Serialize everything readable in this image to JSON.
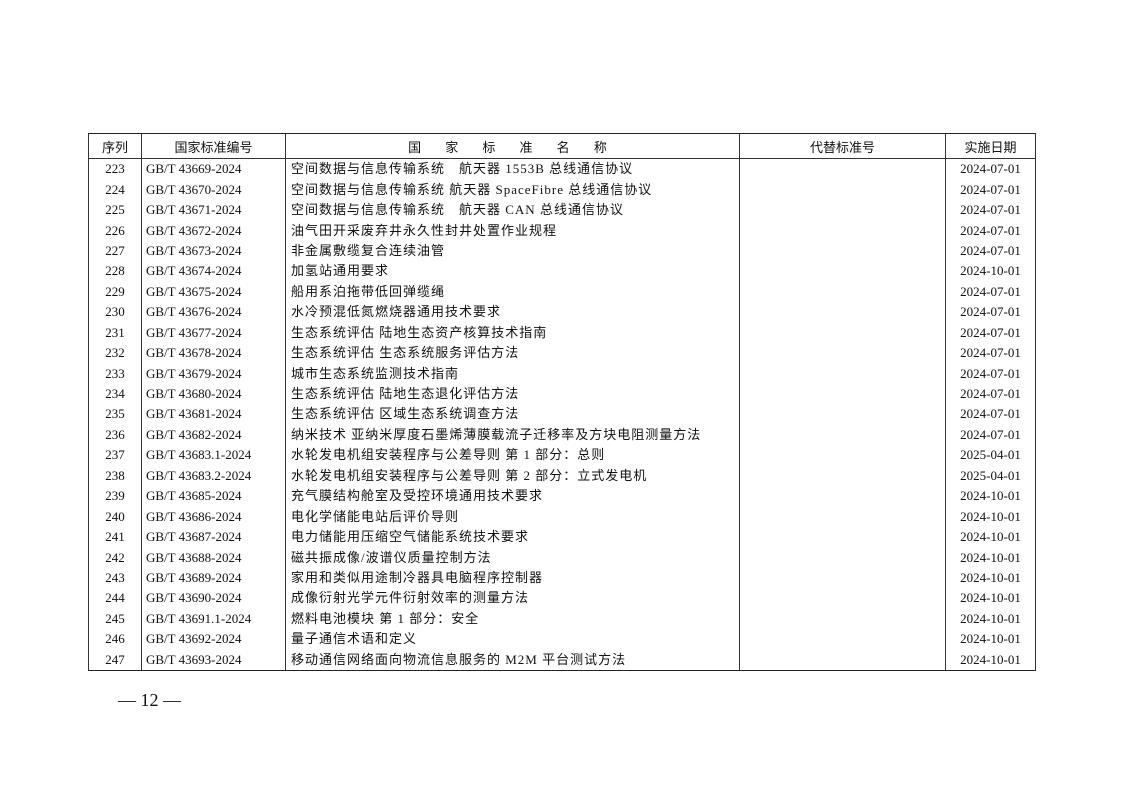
{
  "table": {
    "headers": [
      "序列",
      "国家标准编号",
      "国 家 标 准 名 称",
      "代替标准号",
      "实施日期"
    ],
    "rows": [
      [
        "223",
        "GB/T 43669-2024",
        "空间数据与信息传输系统　航天器 1553B 总线通信协议",
        "",
        "2024-07-01"
      ],
      [
        "224",
        "GB/T 43670-2024",
        "空间数据与信息传输系统 航天器 SpaceFibre 总线通信协议",
        "",
        "2024-07-01"
      ],
      [
        "225",
        "GB/T 43671-2024",
        "空间数据与信息传输系统　航天器 CAN 总线通信协议",
        "",
        "2024-07-01"
      ],
      [
        "226",
        "GB/T 43672-2024",
        "油气田开采废弃井永久性封井处置作业规程",
        "",
        "2024-07-01"
      ],
      [
        "227",
        "GB/T 43673-2024",
        "非金属敷缆复合连续油管",
        "",
        "2024-07-01"
      ],
      [
        "228",
        "GB/T 43674-2024",
        "加氢站通用要求",
        "",
        "2024-10-01"
      ],
      [
        "229",
        "GB/T 43675-2024",
        "船用系泊拖带低回弹缆绳",
        "",
        "2024-07-01"
      ],
      [
        "230",
        "GB/T 43676-2024",
        "水冷预混低氮燃烧器通用技术要求",
        "",
        "2024-07-01"
      ],
      [
        "231",
        "GB/T 43677-2024",
        "生态系统评估 陆地生态资产核算技术指南",
        "",
        "2024-07-01"
      ],
      [
        "232",
        "GB/T 43678-2024",
        "生态系统评估 生态系统服务评估方法",
        "",
        "2024-07-01"
      ],
      [
        "233",
        "GB/T 43679-2024",
        "城市生态系统监测技术指南",
        "",
        "2024-07-01"
      ],
      [
        "234",
        "GB/T 43680-2024",
        "生态系统评估 陆地生态退化评估方法",
        "",
        "2024-07-01"
      ],
      [
        "235",
        "GB/T 43681-2024",
        "生态系统评估 区域生态系统调查方法",
        "",
        "2024-07-01"
      ],
      [
        "236",
        "GB/T 43682-2024",
        "纳米技术 亚纳米厚度石墨烯薄膜载流子迁移率及方块电阻测量方法",
        "",
        "2024-07-01"
      ],
      [
        "237",
        "GB/T 43683.1-2024",
        "水轮发电机组安装程序与公差导则 第 1 部分：总则",
        "",
        "2025-04-01"
      ],
      [
        "238",
        "GB/T 43683.2-2024",
        "水轮发电机组安装程序与公差导则 第 2 部分：立式发电机",
        "",
        "2025-04-01"
      ],
      [
        "239",
        "GB/T 43685-2024",
        "充气膜结构舱室及受控环境通用技术要求",
        "",
        "2024-10-01"
      ],
      [
        "240",
        "GB/T 43686-2024",
        "电化学储能电站后评价导则",
        "",
        "2024-10-01"
      ],
      [
        "241",
        "GB/T 43687-2024",
        "电力储能用压缩空气储能系统技术要求",
        "",
        "2024-10-01"
      ],
      [
        "242",
        "GB/T 43688-2024",
        "磁共振成像/波谱仪质量控制方法",
        "",
        "2024-10-01"
      ],
      [
        "243",
        "GB/T 43689-2024",
        "家用和类似用途制冷器具电脑程序控制器",
        "",
        "2024-10-01"
      ],
      [
        "244",
        "GB/T 43690-2024",
        "成像衍射光学元件衍射效率的测量方法",
        "",
        "2024-10-01"
      ],
      [
        "245",
        "GB/T 43691.1-2024",
        "燃料电池模块 第 1 部分：安全",
        "",
        "2024-10-01"
      ],
      [
        "246",
        "GB/T 43692-2024",
        "量子通信术语和定义",
        "",
        "2024-10-01"
      ],
      [
        "247",
        "GB/T 43693-2024",
        "移动通信网络面向物流信息服务的 M2M 平台测试方法",
        "",
        "2024-10-01"
      ]
    ]
  },
  "footer": {
    "page_number": "— 12 —"
  }
}
